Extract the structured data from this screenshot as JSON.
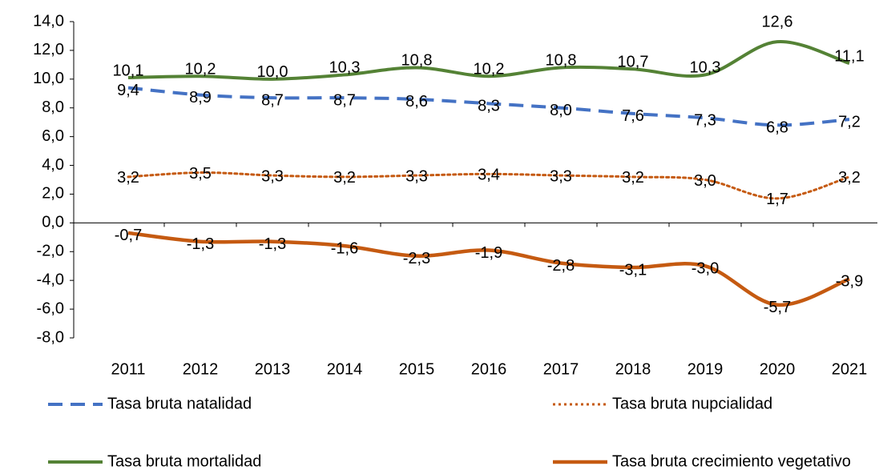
{
  "chart_data": {
    "type": "line",
    "categories": [
      "2011",
      "2012",
      "2013",
      "2014",
      "2015",
      "2016",
      "2017",
      "2018",
      "2019",
      "2020",
      "2021"
    ],
    "series": [
      {
        "name": "Tasa bruta natalidad",
        "color": "#4472c4",
        "dash": "dashed",
        "values": [
          9.4,
          8.9,
          8.7,
          8.7,
          8.6,
          8.3,
          8.0,
          7.6,
          7.3,
          6.8,
          7.2
        ],
        "value_labels": [
          "9,4",
          "8,9",
          "8,7",
          "8,7",
          "8,6",
          "8,3",
          "8,0",
          "7,6",
          "7,3",
          "6,8",
          "7,2"
        ]
      },
      {
        "name": "Tasa bruta nupcialidad",
        "color": "#c55a11",
        "dash": "dotted",
        "values": [
          3.2,
          3.5,
          3.3,
          3.2,
          3.3,
          3.4,
          3.3,
          3.2,
          3.0,
          1.7,
          3.2
        ],
        "value_labels": [
          "3,2",
          "3,5",
          "3,3",
          "3,2",
          "3,3",
          "3,4",
          "3,3",
          "3,2",
          "3,0",
          "1,7",
          "3,2"
        ]
      },
      {
        "name": "Tasa bruta mortalidad",
        "color": "#548235",
        "dash": "solid",
        "values": [
          10.1,
          10.2,
          10.0,
          10.3,
          10.8,
          10.2,
          10.8,
          10.7,
          10.3,
          12.6,
          11.1
        ],
        "value_labels": [
          "10,1",
          "10,2",
          "10,0",
          "10,3",
          "10,8",
          "10,2",
          "10,8",
          "10,7",
          "10,3",
          "12,6",
          "11,1"
        ]
      },
      {
        "name": "Tasa bruta crecimiento vegetativo",
        "color": "#c55a11",
        "dash": "solid",
        "values": [
          -0.7,
          -1.3,
          -1.3,
          -1.6,
          -2.3,
          -1.9,
          -2.8,
          -3.1,
          -3.0,
          -5.7,
          -3.9
        ],
        "value_labels": [
          "-0,7",
          "-1,3",
          "-1,3",
          "-1,6",
          "-2,3",
          "-1,9",
          "-2,8",
          "-3,1",
          "-3,0",
          "-5,7",
          "-3,9"
        ]
      }
    ],
    "ylim": [
      -8,
      14
    ],
    "yticks": [
      {
        "value": 14,
        "label": "14,0"
      },
      {
        "value": 12,
        "label": "12,0"
      },
      {
        "value": 10,
        "label": "10,0"
      },
      {
        "value": 8,
        "label": "8,0"
      },
      {
        "value": 6,
        "label": "6,0"
      },
      {
        "value": 4,
        "label": "4,0"
      },
      {
        "value": 2,
        "label": "2,0"
      },
      {
        "value": 0,
        "label": "0,0"
      },
      {
        "value": -2,
        "label": "-2,0"
      },
      {
        "value": -4,
        "label": "-4,0"
      },
      {
        "value": -6,
        "label": "-6,0"
      },
      {
        "value": -8,
        "label": "-8,0"
      }
    ],
    "legend": "bottom"
  }
}
